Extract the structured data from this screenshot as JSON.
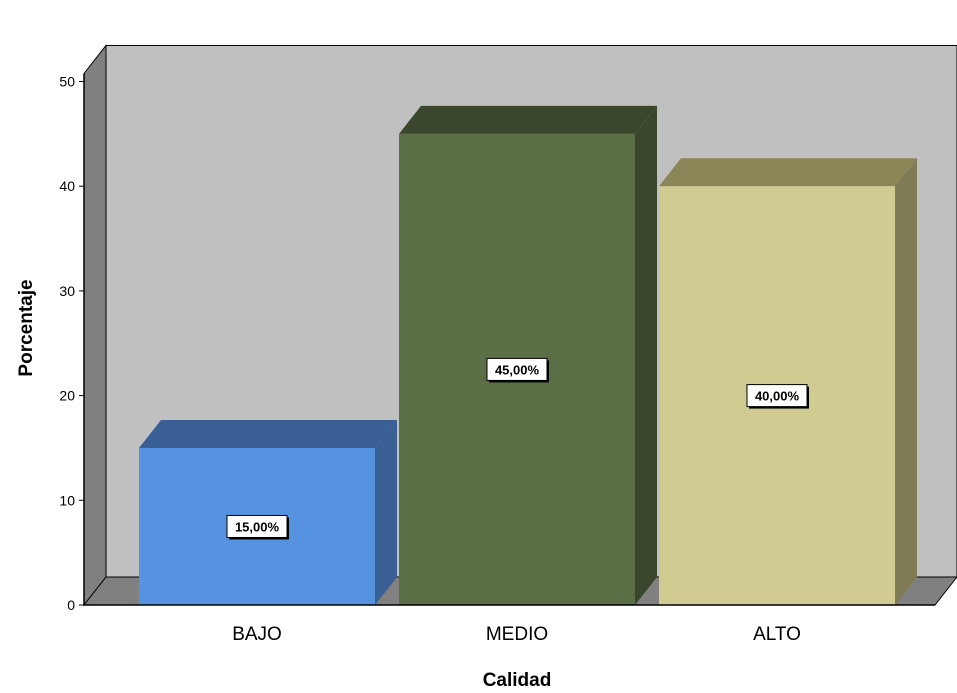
{
  "chart_data": {
    "type": "bar",
    "style": "3d",
    "categories": [
      "BAJO",
      "MEDIO",
      "ALTO"
    ],
    "values": [
      15,
      45,
      40
    ],
    "data_labels": [
      "15,00%",
      "45,00%",
      "40,00%"
    ],
    "colors": [
      "#5593e0",
      "#5b6e45",
      "#d0cc91"
    ],
    "side_colors": [
      "#3a5f94",
      "#3a472c",
      "#7f7b55"
    ],
    "top_colors": [
      "#3a5f94",
      "#3a472c",
      "#8a8658"
    ],
    "xlabel": "Calidad",
    "ylabel": "Porcentaje",
    "ylim": [
      0,
      50
    ],
    "yticks": [
      0,
      10,
      20,
      30,
      40,
      50
    ],
    "background_color": "#c0c0c0",
    "wall_color": "#808080",
    "grid": false,
    "legend": "none"
  }
}
